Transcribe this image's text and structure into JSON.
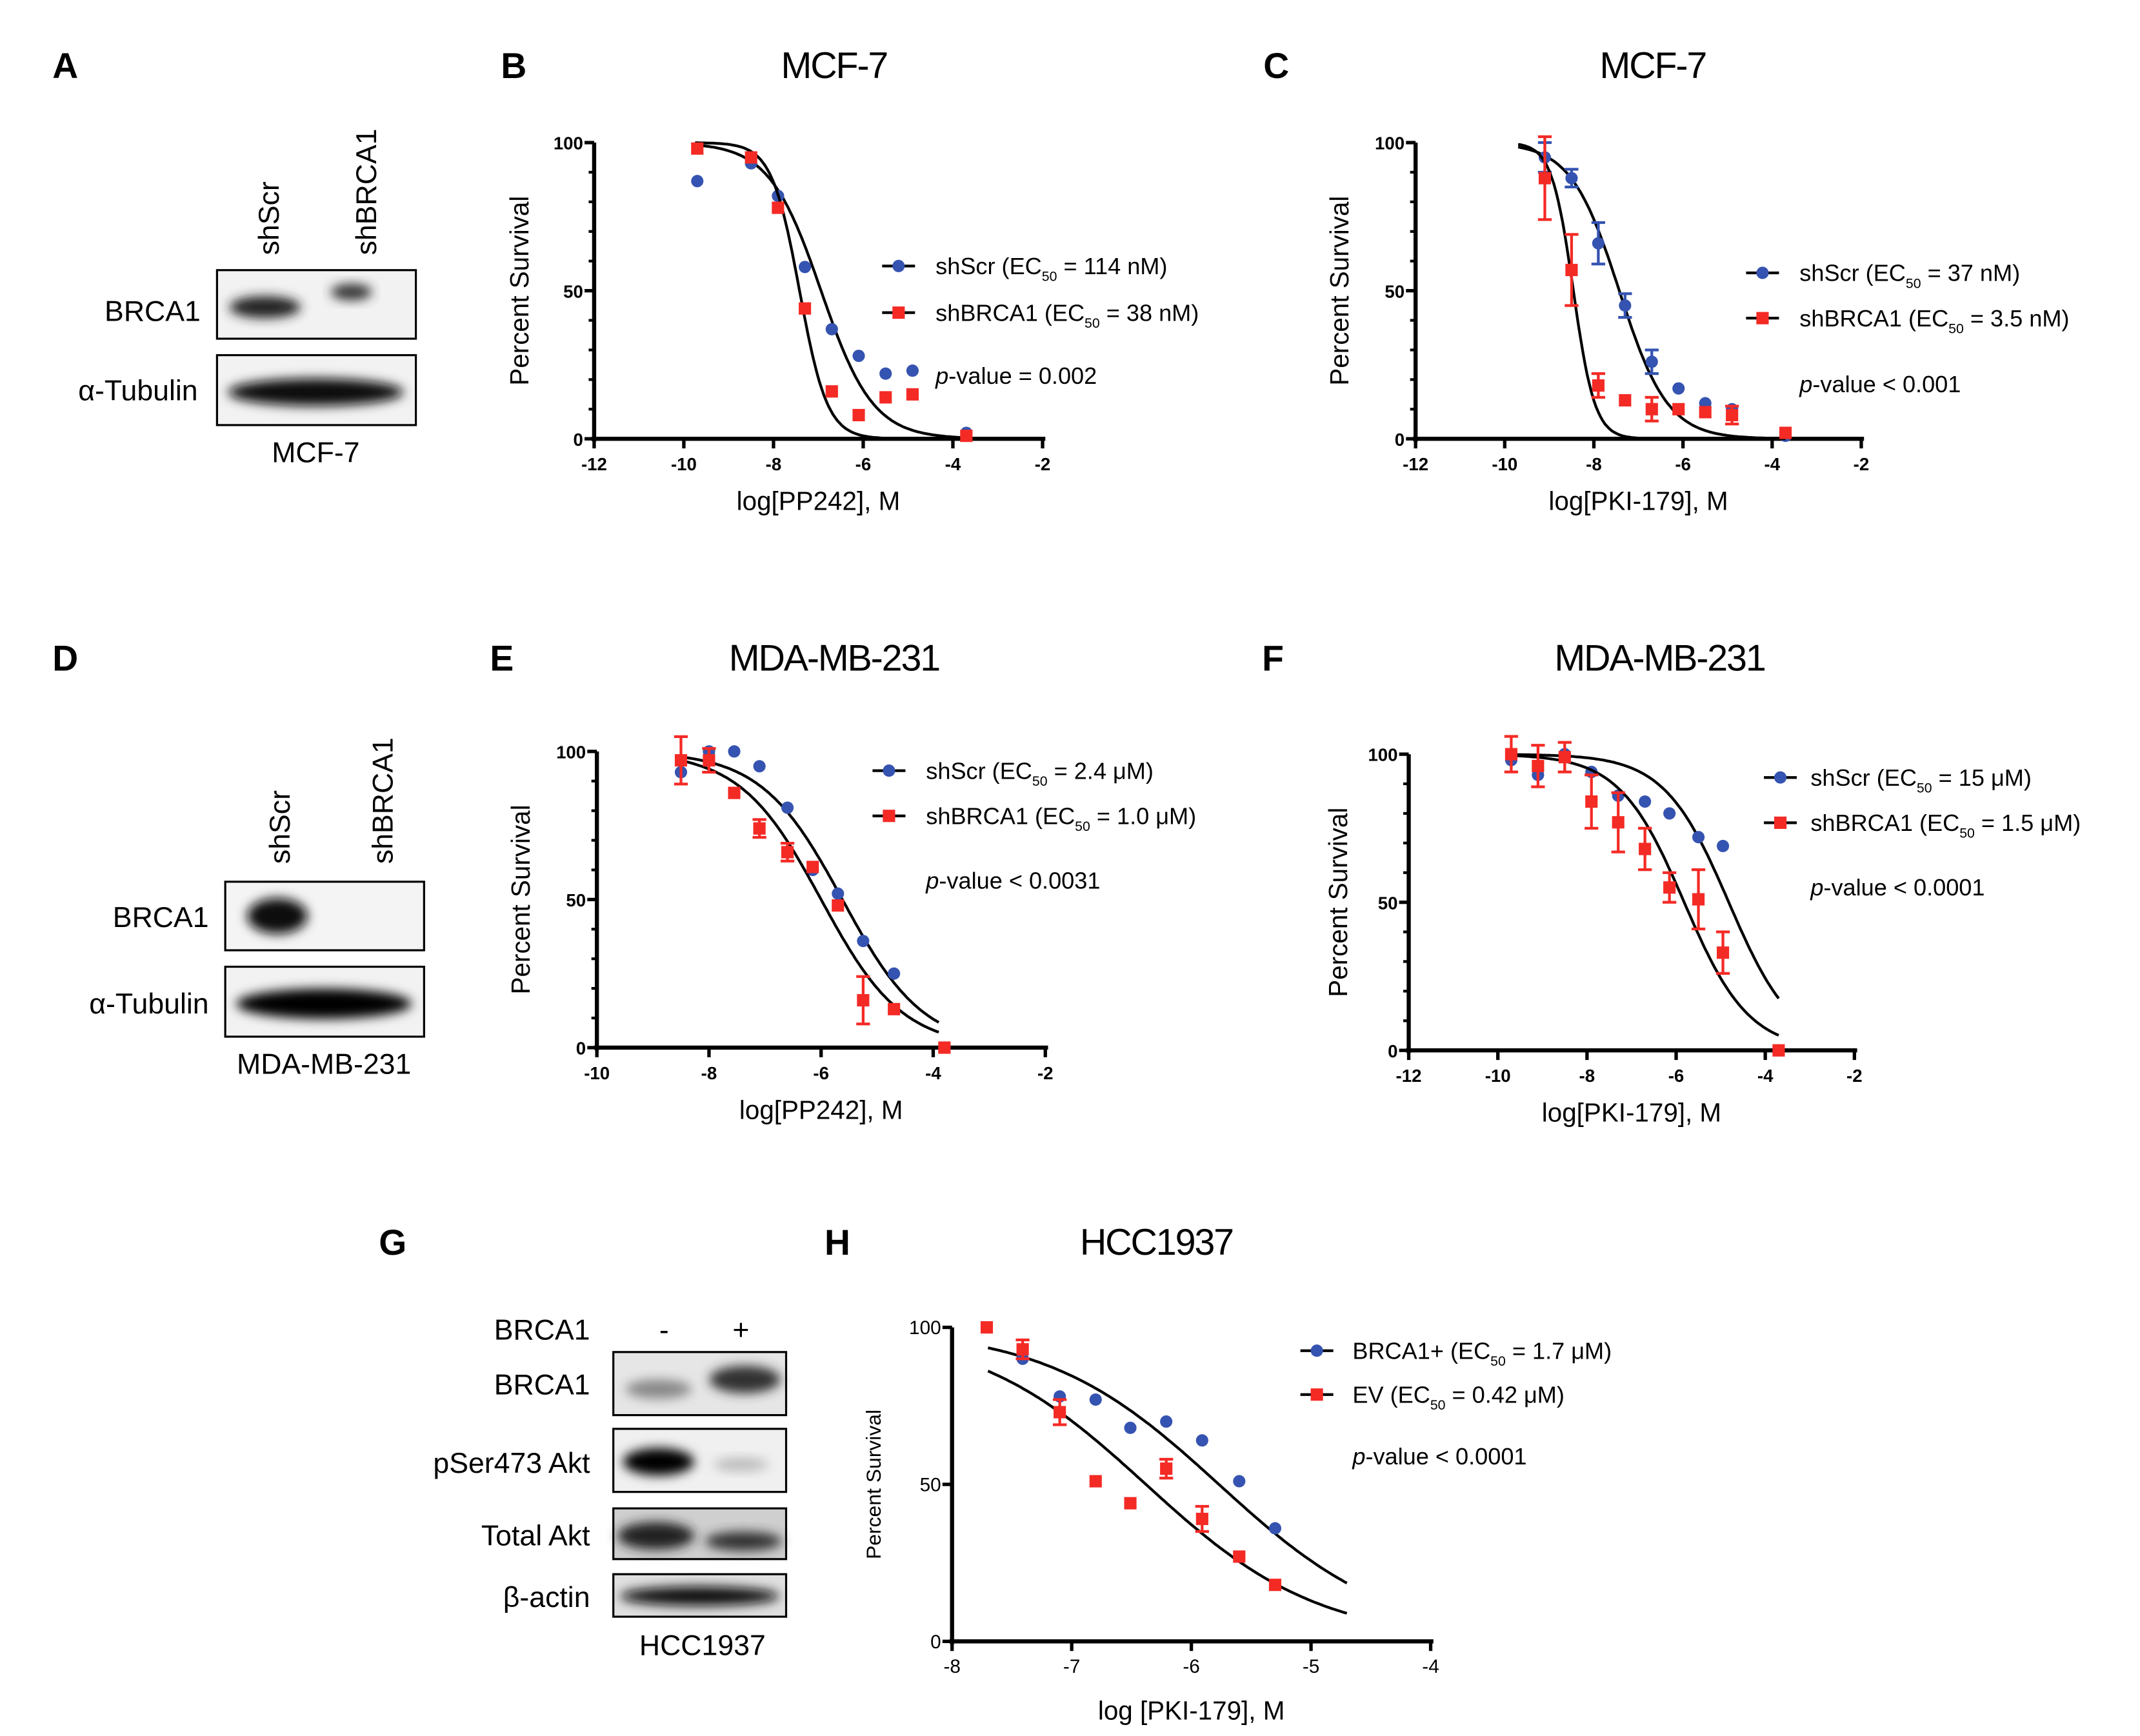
{
  "panels": {
    "A": "A",
    "B": "B",
    "C": "C",
    "D": "D",
    "E": "E",
    "F": "F",
    "G": "G",
    "H": "H"
  },
  "blots": {
    "A": {
      "lanes": [
        "shScr",
        "shBRCA1"
      ],
      "rows": [
        "BRCA1",
        "α-Tubulin"
      ],
      "cell_line": "MCF-7"
    },
    "D": {
      "lanes": [
        "shScr",
        "shBRCA1"
      ],
      "rows": [
        "BRCA1",
        "α-Tubulin"
      ],
      "cell_line": "MDA-MB-231"
    },
    "G": {
      "header": "BRCA1",
      "lanes": [
        "-",
        "+"
      ],
      "rows": [
        "BRCA1",
        "pSer473 Akt",
        "Total Akt",
        "β-actin"
      ],
      "cell_line": "HCC1937"
    }
  },
  "chart_data": [
    {
      "type": "scatter",
      "panel": "B",
      "title": "MCF-7",
      "xlabel": "log[PP242], M",
      "ylabel": "Percent Survival",
      "xlim": [
        -12,
        -2
      ],
      "ylim": [
        0,
        100
      ],
      "xticks": [
        "-12",
        "-10",
        "-8",
        "-6",
        "-4",
        "-2"
      ],
      "yticks": [
        "0",
        "50",
        "100"
      ],
      "pvalue": "-value = 0.002",
      "pvalue_prefix": "p",
      "series": [
        {
          "name": "shScr",
          "ec50_label": "= 114 nM)",
          "color": "#3553b0",
          "marker": "circle",
          "logEC50": -6.94,
          "hill": -0.75,
          "x": [
            -9.7,
            -8.5,
            -7.9,
            -7.3,
            -6.7,
            -6.1,
            -5.5,
            -4.9,
            -3.7
          ],
          "y": [
            87,
            93,
            82,
            58,
            37,
            28,
            22,
            23,
            2
          ]
        },
        {
          "name": "shBRCA1",
          "ec50_label": "= 38 nM)",
          "color": "#f42a25",
          "marker": "square",
          "logEC50": -7.42,
          "hill": -1.4,
          "x": [
            -9.7,
            -8.5,
            -7.9,
            -7.3,
            -6.7,
            -6.1,
            -5.5,
            -4.9,
            -3.7
          ],
          "y": [
            98,
            95,
            78,
            44,
            16,
            8,
            14,
            15,
            1
          ]
        }
      ]
    },
    {
      "type": "scatter",
      "panel": "C",
      "title": "MCF-7",
      "xlabel": "log[PKI-179], M",
      "ylabel": "Percent Survival",
      "xlim": [
        -12,
        -2
      ],
      "ylim": [
        0,
        100
      ],
      "xticks": [
        "-12",
        "-10",
        "-8",
        "-6",
        "-4",
        "-2"
      ],
      "yticks": [
        "0",
        "50",
        "100"
      ],
      "pvalue": "-value < 0.001",
      "pvalue_prefix": "p",
      "series": [
        {
          "name": "shScr",
          "ec50_label": "= 37 nM)",
          "color": "#3553b0",
          "marker": "circle",
          "logEC50": -7.43,
          "hill": -0.8,
          "x": [
            -9.1,
            -8.5,
            -7.9,
            -7.3,
            -6.7,
            -6.1,
            -5.5,
            -4.9,
            -3.7
          ],
          "y": [
            95,
            88,
            66,
            45,
            26,
            17,
            12,
            10,
            1
          ],
          "err": [
            5,
            3,
            7,
            4,
            4,
            2,
            2,
            1,
            1
          ]
        },
        {
          "name": "shBRCA1",
          "ec50_label": "= 3.5 nM)",
          "color": "#f42a25",
          "marker": "square",
          "logEC50": -8.46,
          "hill": -1.8,
          "x": [
            -9.1,
            -8.5,
            -7.9,
            -7.3,
            -6.7,
            -6.1,
            -5.5,
            -4.9,
            -3.7
          ],
          "y": [
            88,
            57,
            18,
            13,
            10,
            10,
            9,
            8,
            2
          ],
          "err": [
            14,
            12,
            4,
            1,
            4,
            2,
            2,
            3,
            2
          ]
        }
      ]
    },
    {
      "type": "scatter",
      "panel": "E",
      "title": "MDA-MB-231",
      "xlabel": "log[PP242], M",
      "ylabel": "Percent Survival",
      "xlim": [
        -10,
        -2
      ],
      "ylim": [
        0,
        100
      ],
      "xticks": [
        "-10",
        "-8",
        "-6",
        "-4",
        "-2"
      ],
      "yticks": [
        "0",
        "50",
        "100"
      ],
      "pvalue": "-value < 0.0031",
      "pvalue_prefix": "p",
      "series": [
        {
          "name": "shScr",
          "ec50_label": "= 2.4 μM)",
          "color": "#3553b0",
          "marker": "circle",
          "logEC50": -5.62,
          "hill": -0.6,
          "x": [
            -8.5,
            -8.0,
            -7.55,
            -7.1,
            -6.6,
            -6.15,
            -5.7,
            -5.25,
            -4.7,
            -3.8
          ],
          "y": [
            93,
            100,
            100,
            95,
            81,
            60,
            52,
            36,
            25,
            0
          ],
          "err": [
            2,
            1,
            1,
            1,
            1,
            2,
            1,
            1,
            1,
            0
          ]
        },
        {
          "name": "shBRCA1",
          "ec50_label": "= 1.0 μM)",
          "color": "#f42a25",
          "marker": "square",
          "logEC50": -6.0,
          "hill": -0.6,
          "x": [
            -8.5,
            -8.0,
            -7.55,
            -7.1,
            -6.6,
            -6.15,
            -5.7,
            -5.25,
            -4.7,
            -3.8
          ],
          "y": [
            97,
            97,
            86,
            74,
            66,
            61,
            48,
            16,
            13,
            0
          ],
          "err": [
            8,
            4,
            1,
            3,
            3,
            2,
            1,
            8,
            1,
            0
          ]
        }
      ]
    },
    {
      "type": "scatter",
      "panel": "F",
      "title": "MDA-MB-231",
      "xlabel": "log[PKI-179], M",
      "ylabel": "Percent Survival",
      "xlim": [
        -12,
        -2
      ],
      "ylim": [
        0,
        100
      ],
      "xticks": [
        "-12",
        "-10",
        "-8",
        "-6",
        "-4",
        "-2"
      ],
      "yticks": [
        "0",
        "50",
        "100"
      ],
      "pvalue": "-value < 0.0001",
      "pvalue_prefix": "p",
      "series": [
        {
          "name": "shScr",
          "ec50_label": "= 15 μM)",
          "color": "#3553b0",
          "marker": "circle",
          "logEC50": -4.82,
          "hill": -0.6,
          "x": [
            -9.7,
            -9.1,
            -8.5,
            -7.9,
            -7.3,
            -6.7,
            -6.15,
            -5.5,
            -4.95,
            -3.7
          ],
          "y": [
            98,
            93,
            100,
            94,
            86,
            84,
            80,
            72,
            69,
            0
          ],
          "err": [
            1,
            1,
            1,
            1,
            1,
            1,
            1,
            1,
            1,
            0
          ]
        },
        {
          "name": "shBRCA1",
          "ec50_label": "= 1.5 μM)",
          "color": "#f42a25",
          "marker": "square",
          "logEC50": -5.82,
          "hill": -0.6,
          "x": [
            -9.7,
            -9.1,
            -8.5,
            -7.9,
            -7.3,
            -6.7,
            -6.15,
            -5.5,
            -4.95,
            -3.7
          ],
          "y": [
            100,
            96,
            99,
            84,
            77,
            68,
            55,
            51,
            33,
            0
          ],
          "err": [
            6,
            7,
            5,
            9,
            10,
            7,
            5,
            10,
            7,
            0
          ]
        }
      ]
    },
    {
      "type": "scatter",
      "panel": "H",
      "title": "HCC1937",
      "xlabel": "log [PKI-179], M",
      "ylabel": "Percent Survival",
      "xlim": [
        -8,
        -4
      ],
      "ylim": [
        0,
        100
      ],
      "xticks": [
        "-8",
        "-7",
        "-6",
        "-5",
        "-4"
      ],
      "yticks": [
        "0",
        "50",
        "100"
      ],
      "pvalue": "-value < 0.0001",
      "pvalue_prefix": "p",
      "series": [
        {
          "name": "BRCA1+",
          "ec50_label": "= 1.7 μM)",
          "color": "#3553b0",
          "marker": "circle",
          "logEC50": -5.77,
          "hill": -0.6,
          "x": [
            -7.71,
            -7.41,
            -7.1,
            -6.8,
            -6.51,
            -6.21,
            -5.91,
            -5.6,
            -5.3
          ],
          "y": [
            100,
            90,
            78,
            77,
            68,
            70,
            64,
            51,
            36
          ],
          "err": [
            1,
            1,
            1,
            1,
            1,
            1,
            1,
            1,
            1
          ]
        },
        {
          "name": "EV",
          "ec50_label": "= 0.42 μM)",
          "color": "#f42a25",
          "marker": "square",
          "logEC50": -6.38,
          "hill": -0.6,
          "x": [
            -7.71,
            -7.41,
            -7.1,
            -6.8,
            -6.51,
            -6.21,
            -5.91,
            -5.6,
            -5.3
          ],
          "y": [
            100,
            93,
            73,
            51,
            44,
            55,
            39,
            27,
            18
          ],
          "err": [
            2,
            3,
            4,
            1,
            1,
            3,
            4,
            1,
            1
          ]
        }
      ]
    }
  ]
}
